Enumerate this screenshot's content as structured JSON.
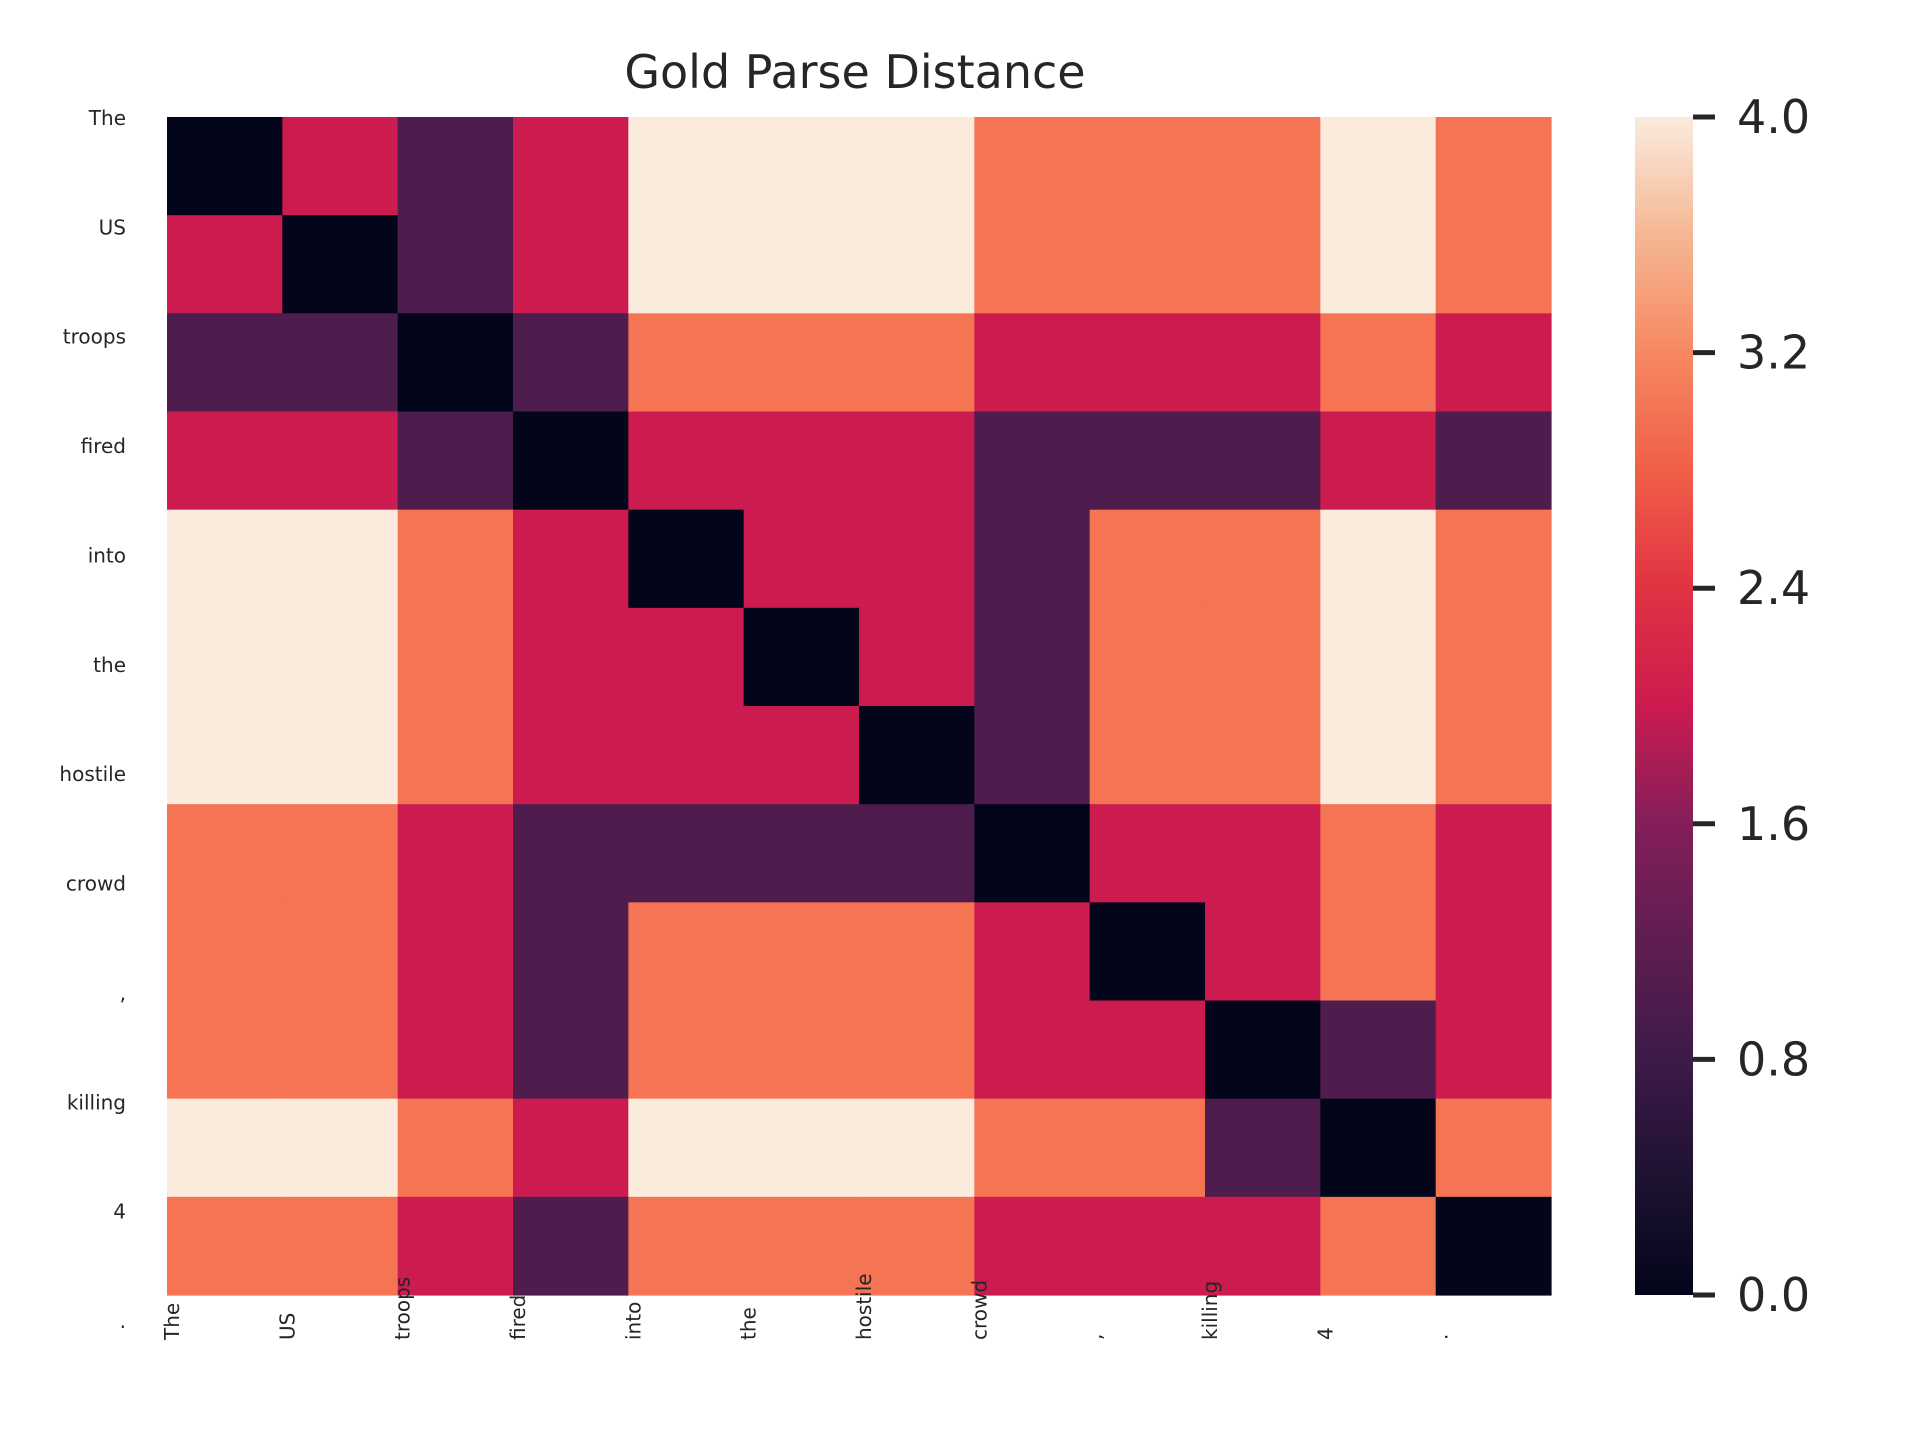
{
  "chart_data": {
    "type": "heatmap",
    "title": "Gold Parse Distance",
    "x_tokens": [
      "The",
      "US",
      "troops",
      "fired",
      "into",
      "the",
      "hostile",
      "crowd",
      ",",
      "killing",
      "4",
      "."
    ],
    "y_tokens": [
      "The",
      "US",
      "troops",
      "fired",
      "into",
      "the",
      "hostile",
      "crowd",
      ",",
      "killing",
      "4",
      "."
    ],
    "values": [
      [
        0,
        2,
        1,
        2,
        4,
        4,
        4,
        3,
        3,
        3,
        4,
        3
      ],
      [
        2,
        0,
        1,
        2,
        4,
        4,
        4,
        3,
        3,
        3,
        4,
        3
      ],
      [
        1,
        1,
        0,
        1,
        3,
        3,
        3,
        2,
        2,
        2,
        3,
        2
      ],
      [
        2,
        2,
        1,
        0,
        2,
        2,
        2,
        1,
        1,
        1,
        2,
        1
      ],
      [
        4,
        4,
        3,
        2,
        0,
        2,
        2,
        1,
        3,
        3,
        4,
        3
      ],
      [
        4,
        4,
        3,
        2,
        2,
        0,
        2,
        1,
        3,
        3,
        4,
        3
      ],
      [
        4,
        4,
        3,
        2,
        2,
        2,
        0,
        1,
        3,
        3,
        4,
        3
      ],
      [
        3,
        3,
        2,
        1,
        1,
        1,
        1,
        0,
        2,
        2,
        3,
        2
      ],
      [
        3,
        3,
        2,
        1,
        3,
        3,
        3,
        2,
        0,
        2,
        3,
        2
      ],
      [
        3,
        3,
        2,
        1,
        3,
        3,
        3,
        2,
        2,
        0,
        1,
        2
      ],
      [
        4,
        4,
        3,
        2,
        4,
        4,
        4,
        3,
        3,
        1,
        0,
        3
      ],
      [
        3,
        3,
        2,
        1,
        3,
        3,
        3,
        2,
        2,
        2,
        3,
        0
      ]
    ],
    "colorbar": {
      "min": 0,
      "max": 4,
      "ticks": [
        "0.0",
        "0.8",
        "1.6",
        "2.4",
        "3.2",
        "4.0"
      ]
    },
    "colormap": "rocket",
    "colorscale_stops": [
      {
        "v": 0.0,
        "color": "#03051a"
      },
      {
        "v": 0.1,
        "color": "#1e1231"
      },
      {
        "v": 0.2,
        "color": "#3d1a4a"
      },
      {
        "v": 0.3,
        "color": "#5f1e50"
      },
      {
        "v": 0.4,
        "color": "#841e5a"
      },
      {
        "v": 0.5,
        "color": "#cb1b4f"
      },
      {
        "v": 0.6,
        "color": "#e13342"
      },
      {
        "v": 0.7,
        "color": "#f15f47"
      },
      {
        "v": 0.8,
        "color": "#f68861"
      },
      {
        "v": 0.9,
        "color": "#f5b793"
      },
      {
        "v": 1.0,
        "color": "#faebdd"
      }
    ],
    "grid": false
  }
}
